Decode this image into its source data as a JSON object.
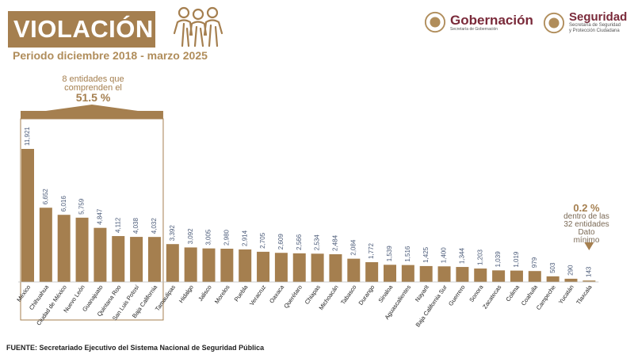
{
  "header": {
    "title": "VIOLACIÓN",
    "period": "Periodo diciembre 2018 - marzo 2025"
  },
  "logos": {
    "gobernacion": {
      "main": "Gobernación",
      "sub": "Secretaría de Gobernación"
    },
    "seguridad": {
      "main": "Seguridad",
      "sub1": "Secretaría de Seguridad",
      "sub2": "y Protección Ciudadana"
    }
  },
  "callout": {
    "line1": "8 entidades que",
    "line2": "comprenden el",
    "pct": "51.5 %"
  },
  "min_note": {
    "pct": "0.2 %",
    "line1": "dentro de las",
    "line2": "32 entidades",
    "line3": "Dato",
    "line4": "mínimo"
  },
  "source": "FUENTE: Secretariado Ejecutivo del Sistema Nacional de Seguridad Pública",
  "colors": {
    "bar": "#a57f4f",
    "min_bar": "#b89a70",
    "accent": "#a57f4f",
    "brand": "#7a2a3a"
  },
  "chart_data": {
    "type": "bar",
    "categories": [
      "México",
      "Chihuahua",
      "Ciudad de México",
      "Nuevo León",
      "Guanajuato",
      "Quintana Roo",
      "San Luis Potosí",
      "Baja California",
      "Tamaulipas",
      "Hidalgo",
      "Jalisco",
      "Morelos",
      "Puebla",
      "Veracruz",
      "Oaxaca",
      "Querétaro",
      "Chiapas",
      "Michoacán",
      "Tabasco",
      "Durango",
      "Sinaloa",
      "Aguascalientes",
      "Nayarit",
      "Baja California Sur",
      "Guerrero",
      "Sonora",
      "Zacatecas",
      "Colima",
      "Coahuila",
      "Campeche",
      "Yucatán",
      "Tlaxcala"
    ],
    "values": [
      11921,
      6652,
      6016,
      5759,
      4847,
      4112,
      4038,
      4032,
      3392,
      3092,
      3005,
      2980,
      2914,
      2705,
      2609,
      2566,
      2534,
      2484,
      2084,
      1772,
      1539,
      1516,
      1425,
      1400,
      1344,
      1203,
      1039,
      1019,
      979,
      503,
      290,
      143
    ],
    "value_labels": [
      "11,921",
      "6,652",
      "6,016",
      "5,759",
      "4,847",
      "4,112",
      "4,038",
      "4,032",
      "3,392",
      "3,092",
      "3,005",
      "2,980",
      "2,914",
      "2,705",
      "2,609",
      "2,566",
      "2,534",
      "2,484",
      "2,084",
      "1,772",
      "1,539",
      "1,516",
      "1,425",
      "1,400",
      "1,344",
      "1,203",
      "1,039",
      "1,019",
      "979",
      "503",
      "290",
      "143"
    ],
    "ylim": [
      0,
      12000
    ],
    "grid": false,
    "highlight_group_count": 8,
    "minimum_index": 31
  }
}
